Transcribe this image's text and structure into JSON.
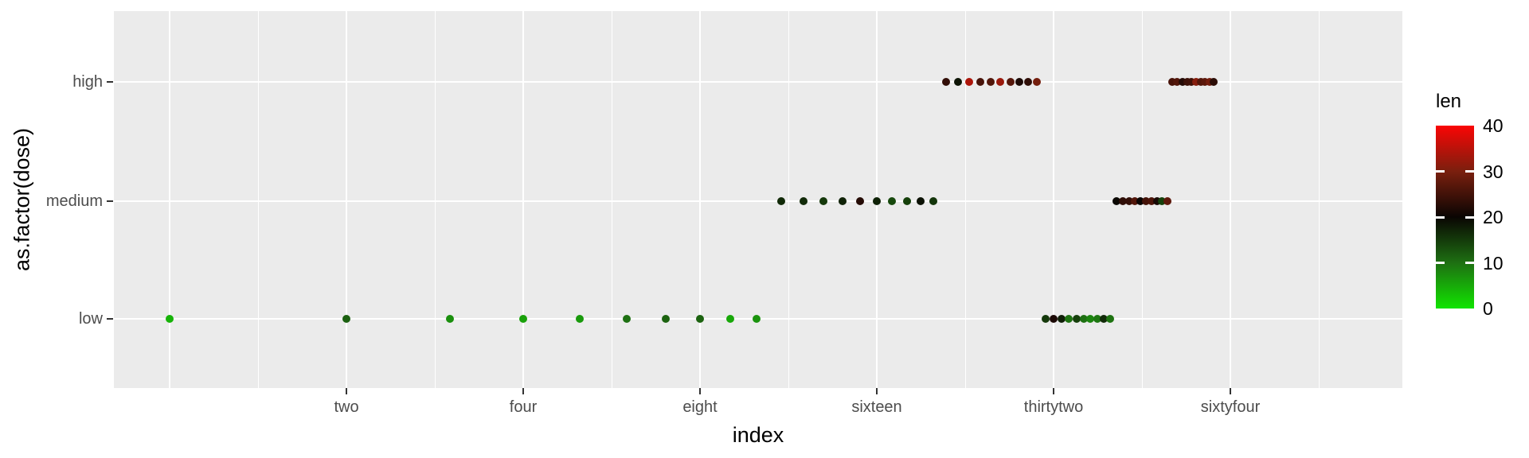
{
  "chart_data": {
    "type": "scatter",
    "title": "",
    "xlabel": "index",
    "ylabel": "as.factor(dose)",
    "x_scale": "log2",
    "x_range_shown": [
      0.8,
      125
    ],
    "grid": true,
    "panel_background": "#EBEBEB",
    "gridline_color": "#ffffff",
    "tick_label_color": "#4d4d4d",
    "x_ticks": [
      {
        "value": 2,
        "label": "two"
      },
      {
        "value": 4,
        "label": "four"
      },
      {
        "value": 8,
        "label": "eight"
      },
      {
        "value": 16,
        "label": "sixteen"
      },
      {
        "value": 32,
        "label": "thirtytwo"
      },
      {
        "value": 64,
        "label": "sixtyfour"
      }
    ],
    "y_categories": [
      "low",
      "medium",
      "high"
    ],
    "color_legend": {
      "title": "len",
      "min": 0,
      "max": 40,
      "tick_values": [
        0,
        10,
        20,
        30,
        40
      ],
      "bar_tick_marks": [
        10,
        20,
        30
      ],
      "stops": [
        {
          "at": 0,
          "color": "#11e400"
        },
        {
          "at": 10,
          "color": "#1e7012"
        },
        {
          "at": 20,
          "color": "#0a0503"
        },
        {
          "at": 30,
          "color": "#7a1f0e"
        },
        {
          "at": 40,
          "color": "#fa0505"
        }
      ],
      "position": "right"
    },
    "points": [
      {
        "index": 1,
        "dose": "low",
        "len": 4.2
      },
      {
        "index": 2,
        "dose": "low",
        "len": 11.5
      },
      {
        "index": 3,
        "dose": "low",
        "len": 7.3
      },
      {
        "index": 4,
        "dose": "low",
        "len": 5.8
      },
      {
        "index": 5,
        "dose": "low",
        "len": 6.4
      },
      {
        "index": 6,
        "dose": "low",
        "len": 10.0
      },
      {
        "index": 7,
        "dose": "low",
        "len": 11.2
      },
      {
        "index": 8,
        "dose": "low",
        "len": 11.2
      },
      {
        "index": 9,
        "dose": "low",
        "len": 5.2
      },
      {
        "index": 10,
        "dose": "low",
        "len": 7.0
      },
      {
        "index": 11,
        "dose": "medium",
        "len": 16.5
      },
      {
        "index": 12,
        "dose": "medium",
        "len": 16.5
      },
      {
        "index": 13,
        "dose": "medium",
        "len": 15.2
      },
      {
        "index": 14,
        "dose": "medium",
        "len": 17.3
      },
      {
        "index": 15,
        "dose": "medium",
        "len": 22.5
      },
      {
        "index": 16,
        "dose": "medium",
        "len": 17.3
      },
      {
        "index": 17,
        "dose": "medium",
        "len": 13.6
      },
      {
        "index": 18,
        "dose": "medium",
        "len": 14.5
      },
      {
        "index": 19,
        "dose": "medium",
        "len": 18.8
      },
      {
        "index": 20,
        "dose": "medium",
        "len": 15.5
      },
      {
        "index": 21,
        "dose": "high",
        "len": 23.6
      },
      {
        "index": 22,
        "dose": "high",
        "len": 18.5
      },
      {
        "index": 23,
        "dose": "high",
        "len": 33.9
      },
      {
        "index": 24,
        "dose": "high",
        "len": 25.5
      },
      {
        "index": 25,
        "dose": "high",
        "len": 26.4
      },
      {
        "index": 26,
        "dose": "high",
        "len": 32.5
      },
      {
        "index": 27,
        "dose": "high",
        "len": 26.7
      },
      {
        "index": 28,
        "dose": "high",
        "len": 21.5
      },
      {
        "index": 29,
        "dose": "high",
        "len": 23.3
      },
      {
        "index": 30,
        "dose": "high",
        "len": 29.5
      },
      {
        "index": 31,
        "dose": "low",
        "len": 15.2
      },
      {
        "index": 32,
        "dose": "low",
        "len": 21.5
      },
      {
        "index": 33,
        "dose": "low",
        "len": 17.6
      },
      {
        "index": 34,
        "dose": "low",
        "len": 9.7
      },
      {
        "index": 35,
        "dose": "low",
        "len": 14.5
      },
      {
        "index": 36,
        "dose": "low",
        "len": 10.0
      },
      {
        "index": 37,
        "dose": "low",
        "len": 8.2
      },
      {
        "index": 38,
        "dose": "low",
        "len": 9.4
      },
      {
        "index": 39,
        "dose": "low",
        "len": 16.5
      },
      {
        "index": 40,
        "dose": "low",
        "len": 9.7
      },
      {
        "index": 41,
        "dose": "medium",
        "len": 19.7
      },
      {
        "index": 42,
        "dose": "medium",
        "len": 23.3
      },
      {
        "index": 43,
        "dose": "medium",
        "len": 23.6
      },
      {
        "index": 44,
        "dose": "medium",
        "len": 26.4
      },
      {
        "index": 45,
        "dose": "medium",
        "len": 20.0
      },
      {
        "index": 46,
        "dose": "medium",
        "len": 25.2
      },
      {
        "index": 47,
        "dose": "medium",
        "len": 25.8
      },
      {
        "index": 48,
        "dose": "medium",
        "len": 21.2
      },
      {
        "index": 49,
        "dose": "medium",
        "len": 14.5
      },
      {
        "index": 50,
        "dose": "medium",
        "len": 27.3
      },
      {
        "index": 51,
        "dose": "high",
        "len": 25.5
      },
      {
        "index": 52,
        "dose": "high",
        "len": 26.4
      },
      {
        "index": 53,
        "dose": "high",
        "len": 22.4
      },
      {
        "index": 54,
        "dose": "high",
        "len": 24.5
      },
      {
        "index": 55,
        "dose": "high",
        "len": 24.8
      },
      {
        "index": 56,
        "dose": "high",
        "len": 30.9
      },
      {
        "index": 57,
        "dose": "high",
        "len": 26.4
      },
      {
        "index": 58,
        "dose": "high",
        "len": 27.3
      },
      {
        "index": 59,
        "dose": "high",
        "len": 29.4
      },
      {
        "index": 60,
        "dose": "high",
        "len": 23.0
      }
    ]
  }
}
